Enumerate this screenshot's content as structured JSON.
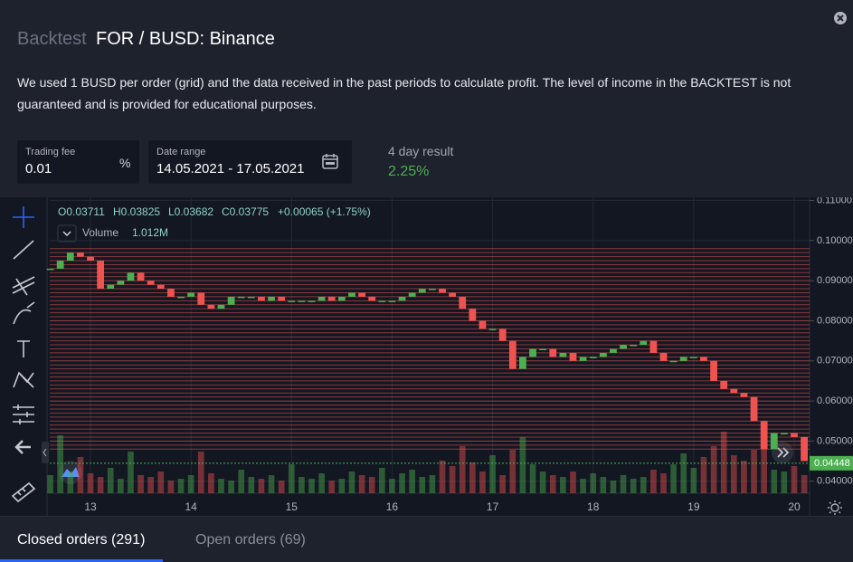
{
  "header": {
    "section": "Backtest",
    "title": "FOR / BUSD: Binance"
  },
  "description": "We used 1 BUSD per order (grid) and the data received in the past periods to calculate profit. The level of income in the BACKTEST is not guaranteed and is provided for educational purposes.",
  "settings": {
    "fee_label": "Trading fee",
    "fee_value": "0.01",
    "fee_unit": "%",
    "date_label": "Date range",
    "date_value": "14.05.2021 - 17.05.2021"
  },
  "result": {
    "label": "4 day result",
    "value": "2.25%"
  },
  "chart": {
    "type": "candlestick",
    "legend": [
      "O0.03711",
      "H0.03825",
      "L0.03682",
      "C0.03775",
      "+0.00065 (+1.75%)"
    ],
    "volume_label": "Volume",
    "volume_value": "1.012M",
    "x": [
      12.6,
      12.7,
      12.8,
      12.9,
      13.0,
      13.1,
      13.2,
      13.3,
      13.4,
      13.5,
      13.6,
      13.7,
      13.8,
      13.9,
      14.0,
      14.1,
      14.2,
      14.3,
      14.4,
      14.5,
      14.6,
      14.7,
      14.8,
      14.9,
      15.0,
      15.1,
      15.2,
      15.3,
      15.4,
      15.5,
      15.6,
      15.7,
      15.8,
      15.9,
      16.0,
      16.1,
      16.2,
      16.3,
      16.4,
      16.5,
      16.6,
      16.7,
      16.8,
      16.9,
      17.0,
      17.1,
      17.2,
      17.3,
      17.4,
      17.5,
      17.6,
      17.7,
      17.8,
      17.9,
      18.0,
      18.1,
      18.2,
      18.3,
      18.4,
      18.5,
      18.6,
      18.7,
      18.8,
      18.9,
      19.0,
      19.1,
      19.2,
      19.3,
      19.4,
      19.5,
      19.6,
      19.7,
      19.8,
      19.9,
      20.0,
      20.1
    ],
    "values": [
      0.093,
      0.095,
      0.097,
      0.096,
      0.095,
      0.088,
      0.089,
      0.09,
      0.092,
      0.09,
      0.089,
      0.088,
      0.086,
      0.086,
      0.087,
      0.084,
      0.083,
      0.084,
      0.086,
      0.086,
      0.086,
      0.085,
      0.086,
      0.085,
      0.085,
      0.085,
      0.085,
      0.086,
      0.085,
      0.086,
      0.087,
      0.086,
      0.085,
      0.085,
      0.085,
      0.086,
      0.087,
      0.088,
      0.088,
      0.087,
      0.086,
      0.083,
      0.08,
      0.078,
      0.078,
      0.075,
      0.068,
      0.071,
      0.073,
      0.073,
      0.071,
      0.072,
      0.07,
      0.071,
      0.071,
      0.072,
      0.073,
      0.074,
      0.074,
      0.075,
      0.072,
      0.07,
      0.07,
      0.071,
      0.071,
      0.07,
      0.065,
      0.063,
      0.062,
      0.061,
      0.055,
      0.048,
      0.052,
      0.052,
      0.051,
      0.045
    ],
    "volume": [
      1.0,
      3.2,
      1.2,
      2.0,
      1.1,
      0.9,
      1.4,
      0.8,
      2.3,
      1.0,
      0.9,
      1.2,
      0.7,
      0.8,
      1.0,
      2.3,
      1.1,
      0.8,
      0.7,
      1.3,
      0.9,
      0.8,
      1.0,
      0.7,
      1.6,
      0.9,
      0.8,
      1.1,
      0.7,
      0.8,
      1.2,
      1.0,
      0.9,
      1.4,
      0.8,
      1.1,
      1.3,
      0.9,
      1.0,
      1.8,
      1.5,
      2.6,
      1.7,
      1.2,
      2.1,
      1.0,
      2.4,
      3.1,
      1.6,
      1.2,
      1.0,
      0.9,
      1.2,
      0.8,
      1.1,
      0.9,
      0.7,
      1.0,
      0.8,
      0.9,
      1.3,
      1.1,
      1.6,
      2.2,
      1.4,
      2.0,
      2.6,
      3.4,
      2.1,
      1.8,
      2.4,
      3.0,
      1.3,
      1.2,
      1.5,
      1.0
    ],
    "vlim": [
      0,
      4
    ],
    "grid_levels": [
      0.048,
      0.049,
      0.05,
      0.051,
      0.052,
      0.053,
      0.054,
      0.055,
      0.056,
      0.057,
      0.058,
      0.059,
      0.06,
      0.061,
      0.062,
      0.063,
      0.064,
      0.065,
      0.066,
      0.067,
      0.068,
      0.069,
      0.07,
      0.071,
      0.072,
      0.073,
      0.074,
      0.075,
      0.076,
      0.077,
      0.078,
      0.079,
      0.08,
      0.081,
      0.082,
      0.083,
      0.084,
      0.085,
      0.086,
      0.087,
      0.088,
      0.089,
      0.09,
      0.091,
      0.092,
      0.093,
      0.094,
      0.095,
      0.096,
      0.097,
      0.098
    ],
    "grid_color": "#ef5350",
    "up_color": "#4caf50",
    "down_color": "#ef5350",
    "xlim": [
      12.595,
      20.153
    ],
    "xticks": [
      13,
      14,
      15,
      16,
      17,
      18,
      19,
      20
    ],
    "ylim": [
      0.037,
      0.1108
    ],
    "yticks": [
      {
        "value": 0.11,
        "label": "0.11000"
      },
      {
        "value": 0.1,
        "label": "0.10000"
      },
      {
        "value": 0.09,
        "label": "0.09000"
      },
      {
        "value": 0.08,
        "label": "0.08000"
      },
      {
        "value": 0.07,
        "label": "0.07000"
      },
      {
        "value": 0.06,
        "label": "0.06000"
      },
      {
        "value": 0.05,
        "label": "0.05000"
      },
      {
        "value": 0.04,
        "label": "0.04000"
      }
    ],
    "last_price": {
      "value": 0.04448,
      "label": "0.04448"
    }
  },
  "tabs": [
    "Closed orders (291)",
    "Open orders (69)"
  ]
}
